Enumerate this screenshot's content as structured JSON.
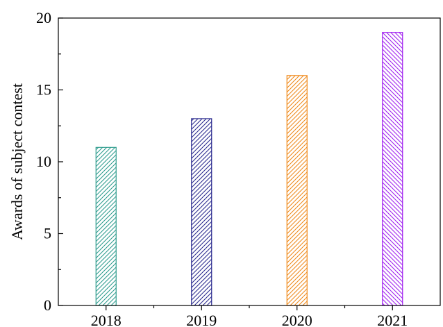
{
  "chart_data": {
    "type": "bar",
    "categories": [
      "2018",
      "2019",
      "2020",
      "2021"
    ],
    "values": [
      11,
      13,
      16,
      19
    ],
    "colors": [
      "#2e9c8e",
      "#2b2b8f",
      "#f08a1c",
      "#a020f0"
    ],
    "hatch": [
      "forward-diagonal",
      "forward-diagonal",
      "forward-diagonal",
      "back-diagonal"
    ],
    "title": "",
    "xlabel": "",
    "ylabel": "Awards of subject contest",
    "ylim": [
      0,
      20
    ],
    "yticks": [
      0,
      5,
      10,
      15,
      20
    ],
    "grid": false,
    "legend": "none"
  }
}
